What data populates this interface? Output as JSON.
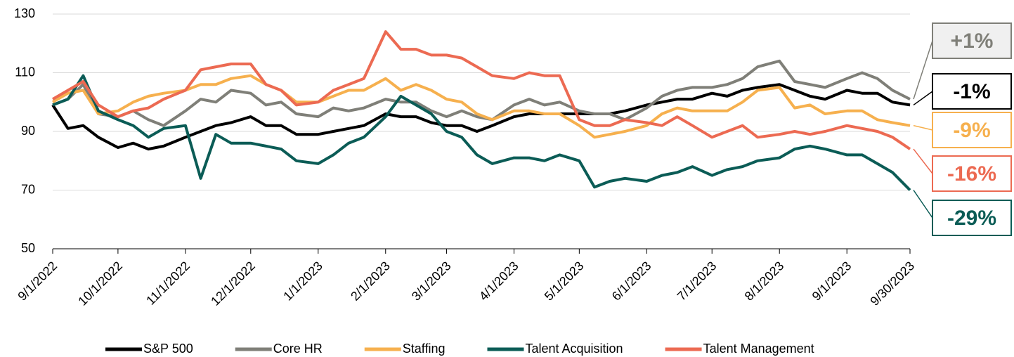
{
  "chart_data": {
    "type": "line",
    "x": [
      "9/1/2022",
      "9/8/2022",
      "9/15/2022",
      "9/22/2022",
      "10/1/2022",
      "10/8/2022",
      "10/15/2022",
      "10/22/2022",
      "11/1/2022",
      "11/8/2022",
      "11/15/2022",
      "11/22/2022",
      "12/1/2022",
      "12/8/2022",
      "12/15/2022",
      "12/22/2022",
      "1/1/2023",
      "1/8/2023",
      "1/15/2023",
      "1/22/2023",
      "2/1/2023",
      "2/8/2023",
      "2/15/2023",
      "2/22/2023",
      "3/1/2023",
      "3/8/2023",
      "3/15/2023",
      "3/22/2023",
      "4/1/2023",
      "4/8/2023",
      "4/15/2023",
      "4/22/2023",
      "5/1/2023",
      "5/8/2023",
      "5/15/2023",
      "5/22/2023",
      "6/1/2023",
      "6/8/2023",
      "6/15/2023",
      "6/22/2023",
      "7/1/2023",
      "7/8/2023",
      "7/15/2023",
      "7/22/2023",
      "8/1/2023",
      "8/8/2023",
      "8/15/2023",
      "8/22/2023",
      "9/1/2023",
      "9/8/2023",
      "9/15/2023",
      "9/22/2023",
      "9/30/2023"
    ],
    "series": [
      {
        "name": "S&P 500",
        "color": "#000000",
        "end_label": "-1%",
        "values": [
          99,
          91,
          92,
          88,
          84.5,
          86,
          84,
          85,
          88,
          90,
          92,
          93,
          95,
          92,
          92,
          89,
          89,
          90,
          91,
          92,
          96,
          95,
          95,
          93,
          92,
          92,
          90,
          92,
          95,
          96,
          96,
          96,
          96,
          96,
          96,
          97,
          99,
          100,
          101,
          101,
          103,
          102,
          104,
          105,
          106,
          104,
          102,
          101,
          104,
          103,
          103,
          100,
          99
        ]
      },
      {
        "name": "Core HR",
        "color": "#7f7f78",
        "end_label": "+1%",
        "values": [
          99,
          101,
          106,
          96,
          95,
          97,
          94,
          92,
          97,
          101,
          100,
          104,
          103,
          99,
          100,
          96,
          95,
          98,
          97,
          98,
          101,
          100,
          100,
          97,
          95,
          97,
          95,
          94,
          99,
          101,
          99,
          100,
          97,
          96,
          96,
          94,
          98,
          102,
          104,
          105,
          105,
          106,
          108,
          112,
          114,
          107,
          106,
          105,
          108,
          110,
          108,
          104,
          101
        ]
      },
      {
        "name": "Staffing",
        "color": "#f6b04e",
        "end_label": "-9%",
        "values": [
          100,
          103,
          104,
          96,
          97,
          100,
          102,
          103,
          104,
          106,
          106,
          108,
          109,
          106,
          104,
          100,
          100,
          102,
          104,
          104,
          108,
          104,
          106,
          104,
          101,
          100,
          96,
          94,
          97,
          97,
          96,
          96,
          92,
          88,
          89,
          90,
          92,
          96,
          98,
          97,
          97,
          97,
          100,
          104,
          105,
          98,
          99,
          96,
          97,
          97,
          94,
          93,
          92
        ]
      },
      {
        "name": "Talent Acquisition",
        "color": "#0b5c56",
        "end_label": "-29%",
        "values": [
          99,
          101,
          109,
          97,
          94,
          92,
          88,
          91,
          92,
          74,
          89,
          86,
          86,
          85,
          84,
          80,
          79,
          82,
          86,
          88,
          95,
          102,
          99,
          96,
          90,
          88,
          82,
          79,
          81,
          81,
          80,
          82,
          80,
          71,
          73,
          74,
          73,
          75,
          76,
          78,
          75,
          77,
          78,
          80,
          81,
          84,
          85,
          84,
          82,
          82,
          79,
          76,
          70
        ]
      },
      {
        "name": "Talent Management",
        "color": "#ec6a52",
        "end_label": "-16%",
        "values": [
          101,
          104,
          107,
          99,
          95,
          97,
          98,
          101,
          104,
          111,
          112,
          113,
          113,
          106,
          104,
          99,
          100,
          104,
          106,
          108,
          124,
          118,
          118,
          116,
          116,
          115,
          112,
          109,
          108,
          110,
          109,
          109,
          94,
          92,
          92,
          94,
          93,
          92,
          95,
          92,
          88,
          90,
          92,
          88,
          89,
          90,
          89,
          90,
          92,
          91,
          90,
          88,
          84
        ]
      }
    ],
    "xlim": [
      "9/1/2022",
      "9/30/2023"
    ],
    "xticks": [
      "9/1/2022",
      "10/1/2022",
      "11/1/2022",
      "12/1/2022",
      "1/1/2023",
      "2/1/2023",
      "3/1/2023",
      "4/1/2023",
      "5/1/2023",
      "6/1/2023",
      "7/1/2023",
      "8/1/2023",
      "9/1/2023",
      "9/30/2023"
    ],
    "ylim": [
      50,
      130
    ],
    "yticks": [
      50,
      70,
      90,
      110,
      130
    ],
    "grid": true
  }
}
